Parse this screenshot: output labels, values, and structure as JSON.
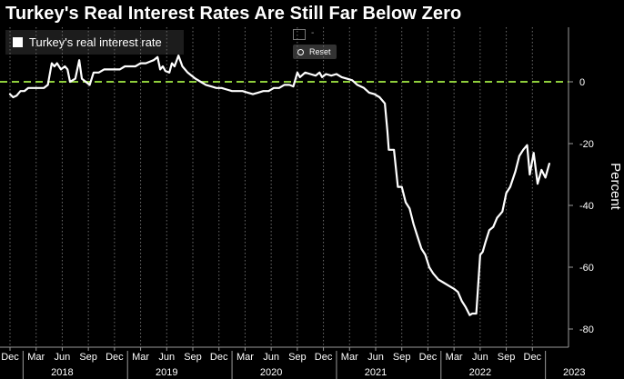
{
  "chart_data": {
    "type": "line",
    "title": "Turkey's Real Interest Rates Are Still Far Below Zero",
    "ylabel": "Percent",
    "xlabel": "",
    "ylim": [
      -85,
      18
    ],
    "yticks": [
      0,
      -20,
      -40,
      -60,
      -80
    ],
    "x_range": [
      0,
      21
    ],
    "reference_line": {
      "value": 0,
      "color": "#8fce3c",
      "style": "dashed"
    },
    "legend": {
      "position": "top-left",
      "entries": [
        "Turkey's real interest rate"
      ]
    },
    "month_ticks": [
      {
        "label": "Dec",
        "x": 0
      },
      {
        "label": "Mar",
        "x": 1
      },
      {
        "label": "Jun",
        "x": 2
      },
      {
        "label": "Sep",
        "x": 3
      },
      {
        "label": "Dec",
        "x": 4
      },
      {
        "label": "Mar",
        "x": 5
      },
      {
        "label": "Jun",
        "x": 6
      },
      {
        "label": "Sep",
        "x": 7
      },
      {
        "label": "Dec",
        "x": 8
      },
      {
        "label": "Mar",
        "x": 9
      },
      {
        "label": "Jun",
        "x": 10
      },
      {
        "label": "Sep",
        "x": 11
      },
      {
        "label": "Dec",
        "x": 12
      },
      {
        "label": "Mar",
        "x": 13
      },
      {
        "label": "Jun",
        "x": 14
      },
      {
        "label": "Sep",
        "x": 15
      },
      {
        "label": "Dec",
        "x": 16
      },
      {
        "label": "Mar",
        "x": 17
      },
      {
        "label": "Jun",
        "x": 18
      },
      {
        "label": "Sep",
        "x": 19
      },
      {
        "label": "Dec",
        "x": 20
      }
    ],
    "year_labels": [
      {
        "label": "2018",
        "x": 2
      },
      {
        "label": "2019",
        "x": 6
      },
      {
        "label": "2020",
        "x": 10
      },
      {
        "label": "2021",
        "x": 14
      },
      {
        "label": "2022",
        "x": 18
      },
      {
        "label": "2023",
        "x": 22
      }
    ],
    "series": [
      {
        "name": "Turkey's real interest rate",
        "color": "#ffffff",
        "points": [
          [
            0.0,
            -4.0
          ],
          [
            0.12,
            -5.0
          ],
          [
            0.25,
            -4.5
          ],
          [
            0.4,
            -3.0
          ],
          [
            0.55,
            -3.0
          ],
          [
            0.7,
            -2.0
          ],
          [
            0.9,
            -2.0
          ],
          [
            1.1,
            -2.0
          ],
          [
            1.3,
            -2.0
          ],
          [
            1.45,
            -1.0
          ],
          [
            1.6,
            6.0
          ],
          [
            1.7,
            5.0
          ],
          [
            1.8,
            6.0
          ],
          [
            1.95,
            4.0
          ],
          [
            2.1,
            5.0
          ],
          [
            2.2,
            4.0
          ],
          [
            2.3,
            0.0
          ],
          [
            2.5,
            1.0
          ],
          [
            2.65,
            7.0
          ],
          [
            2.75,
            1.0
          ],
          [
            2.9,
            0.0
          ],
          [
            3.05,
            -1.0
          ],
          [
            3.2,
            3.0
          ],
          [
            3.4,
            3.0
          ],
          [
            3.6,
            4.0
          ],
          [
            3.8,
            4.0
          ],
          [
            4.0,
            4.0
          ],
          [
            4.2,
            4.0
          ],
          [
            4.4,
            5.0
          ],
          [
            4.6,
            5.0
          ],
          [
            4.8,
            5.0
          ],
          [
            5.0,
            6.0
          ],
          [
            5.2,
            6.0
          ],
          [
            5.35,
            6.5
          ],
          [
            5.5,
            7.0
          ],
          [
            5.65,
            8.0
          ],
          [
            5.75,
            4.0
          ],
          [
            5.85,
            5.0
          ],
          [
            5.95,
            3.5
          ],
          [
            6.1,
            3.0
          ],
          [
            6.2,
            6.0
          ],
          [
            6.3,
            5.0
          ],
          [
            6.45,
            8.5
          ],
          [
            6.6,
            5.0
          ],
          [
            6.8,
            3.0
          ],
          [
            6.95,
            2.0
          ],
          [
            7.1,
            1.0
          ],
          [
            7.3,
            0.0
          ],
          [
            7.5,
            -1.0
          ],
          [
            7.7,
            -1.5
          ],
          [
            7.9,
            -2.0
          ],
          [
            8.1,
            -2.0
          ],
          [
            8.3,
            -2.5
          ],
          [
            8.5,
            -3.0
          ],
          [
            8.7,
            -3.0
          ],
          [
            8.9,
            -3.0
          ],
          [
            9.1,
            -3.5
          ],
          [
            9.3,
            -4.0
          ],
          [
            9.5,
            -3.5
          ],
          [
            9.7,
            -3.0
          ],
          [
            9.9,
            -3.0
          ],
          [
            10.1,
            -2.0
          ],
          [
            10.3,
            -2.0
          ],
          [
            10.5,
            -1.0
          ],
          [
            10.7,
            -1.0
          ],
          [
            10.85,
            -1.5
          ],
          [
            11.0,
            3.0
          ],
          [
            11.1,
            1.5
          ],
          [
            11.3,
            3.0
          ],
          [
            11.5,
            2.5
          ],
          [
            11.7,
            2.0
          ],
          [
            11.85,
            3.0
          ],
          [
            11.95,
            1.5
          ],
          [
            12.1,
            2.5
          ],
          [
            12.3,
            2.0
          ],
          [
            12.5,
            2.5
          ],
          [
            12.7,
            1.5
          ],
          [
            12.9,
            1.0
          ],
          [
            13.1,
            0.5
          ],
          [
            13.3,
            -1.0
          ],
          [
            13.55,
            -2.0
          ],
          [
            13.75,
            -3.5
          ],
          [
            13.95,
            -4.0
          ],
          [
            14.15,
            -5.0
          ],
          [
            14.35,
            -7.0
          ],
          [
            14.45,
            -16.0
          ],
          [
            14.5,
            -22.0
          ],
          [
            14.7,
            -22.0
          ],
          [
            14.85,
            -34.0
          ],
          [
            15.0,
            -34.0
          ],
          [
            15.15,
            -39.0
          ],
          [
            15.3,
            -41.0
          ],
          [
            15.45,
            -46.0
          ],
          [
            15.6,
            -50.0
          ],
          [
            15.75,
            -54.0
          ],
          [
            15.9,
            -56.0
          ],
          [
            16.05,
            -60.0
          ],
          [
            16.2,
            -62.0
          ],
          [
            16.4,
            -64.0
          ],
          [
            16.6,
            -65.0
          ],
          [
            16.8,
            -66.0
          ],
          [
            17.0,
            -67.0
          ],
          [
            17.15,
            -68.0
          ],
          [
            17.3,
            -71.0
          ],
          [
            17.45,
            -73.0
          ],
          [
            17.6,
            -75.5
          ],
          [
            17.7,
            -75.0
          ],
          [
            17.85,
            -75.0
          ],
          [
            18.0,
            -56.0
          ],
          [
            18.1,
            -55.0
          ],
          [
            18.2,
            -52.0
          ],
          [
            18.35,
            -48.0
          ],
          [
            18.5,
            -47.0
          ],
          [
            18.65,
            -44.0
          ],
          [
            18.85,
            -42.0
          ],
          [
            19.0,
            -36.0
          ],
          [
            19.15,
            -34.0
          ],
          [
            19.35,
            -29.0
          ],
          [
            19.5,
            -24.0
          ],
          [
            19.65,
            -22.0
          ],
          [
            19.8,
            -20.5
          ],
          [
            19.9,
            -30.0
          ],
          [
            20.05,
            -23.0
          ],
          [
            20.2,
            -33.0
          ],
          [
            20.35,
            -28.5
          ],
          [
            20.5,
            -31.0
          ],
          [
            20.65,
            -26.5
          ]
        ]
      }
    ]
  }
}
